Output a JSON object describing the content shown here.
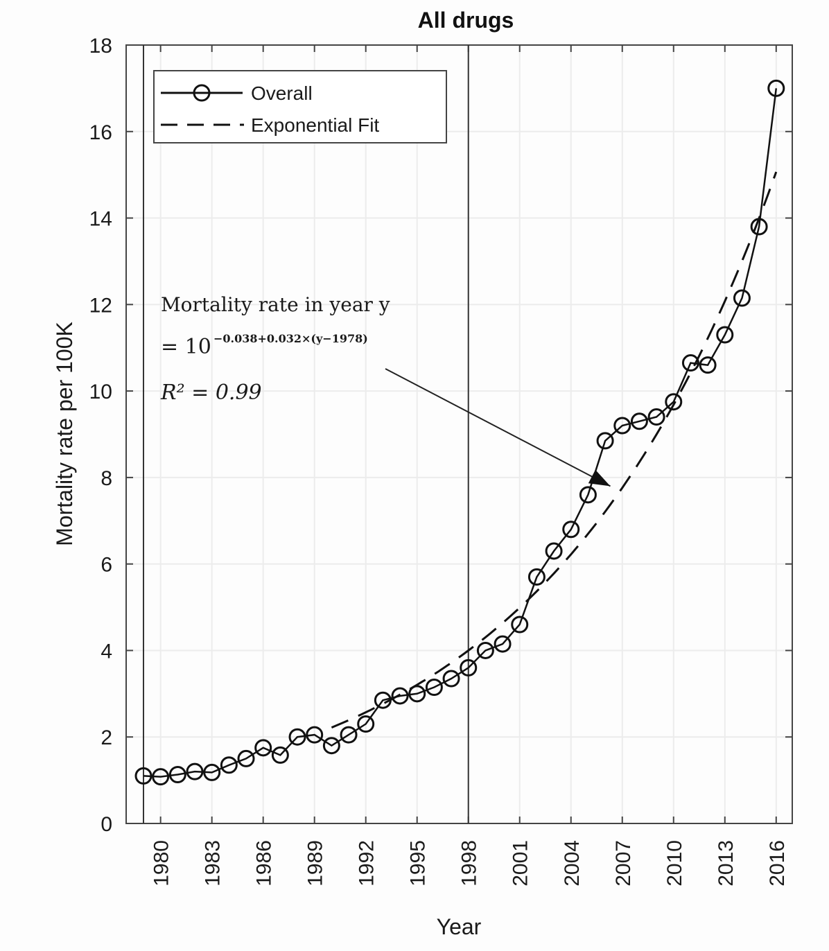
{
  "chart_data": {
    "type": "line",
    "title": "All drugs",
    "xlabel": "Year",
    "ylabel": "Mortality rate per 100K",
    "xlim": [
      1978,
      2017
    ],
    "ylim": [
      0,
      18
    ],
    "yticks": [
      "0",
      "2",
      "4",
      "6",
      "8",
      "10",
      "12",
      "14",
      "16",
      "18"
    ],
    "xticks": [
      "1980",
      "1983",
      "1986",
      "1989",
      "1992",
      "1995",
      "1998",
      "2001",
      "2004",
      "2007",
      "2010",
      "2013",
      "2016"
    ],
    "vlines": [
      1979,
      1998
    ],
    "legend": {
      "position": "top-left",
      "entries": [
        "Overall",
        "Exponential Fit"
      ]
    },
    "series": [
      {
        "name": "Overall",
        "style": "solid-circles",
        "x": [
          1979,
          1980,
          1981,
          1982,
          1983,
          1984,
          1985,
          1986,
          1987,
          1988,
          1989,
          1990,
          1991,
          1992,
          1993,
          1994,
          1995,
          1996,
          1997,
          1998,
          1999,
          2000,
          2001,
          2002,
          2003,
          2004,
          2005,
          2006,
          2007,
          2008,
          2009,
          2010,
          2011,
          2012,
          2013,
          2014,
          2015,
          2016
        ],
        "values": [
          1.1,
          1.08,
          1.13,
          1.2,
          1.18,
          1.35,
          1.5,
          1.75,
          1.58,
          2.0,
          2.05,
          1.8,
          2.05,
          2.3,
          2.85,
          2.95,
          3.0,
          3.15,
          3.35,
          3.6,
          4.0,
          4.15,
          4.6,
          5.7,
          6.3,
          6.8,
          7.6,
          8.85,
          9.2,
          9.3,
          9.4,
          9.75,
          10.65,
          10.6,
          11.3,
          12.15,
          13.8,
          17.0
        ]
      },
      {
        "name": "Exponential Fit",
        "style": "dashed",
        "formula": {
          "intercept": -0.038,
          "slope": 0.032,
          "base_year": 1978
        },
        "x_range": [
          1990,
          2016
        ]
      }
    ],
    "annotation": {
      "line1": "Mortality rate in year y",
      "line2_prefix": "= 10",
      "line2_exponent": "−0.038+0.032×(y−1978)",
      "line3": "R² = 0.99",
      "arrow_target": {
        "x": 2006.3,
        "y": 7.8
      }
    }
  }
}
